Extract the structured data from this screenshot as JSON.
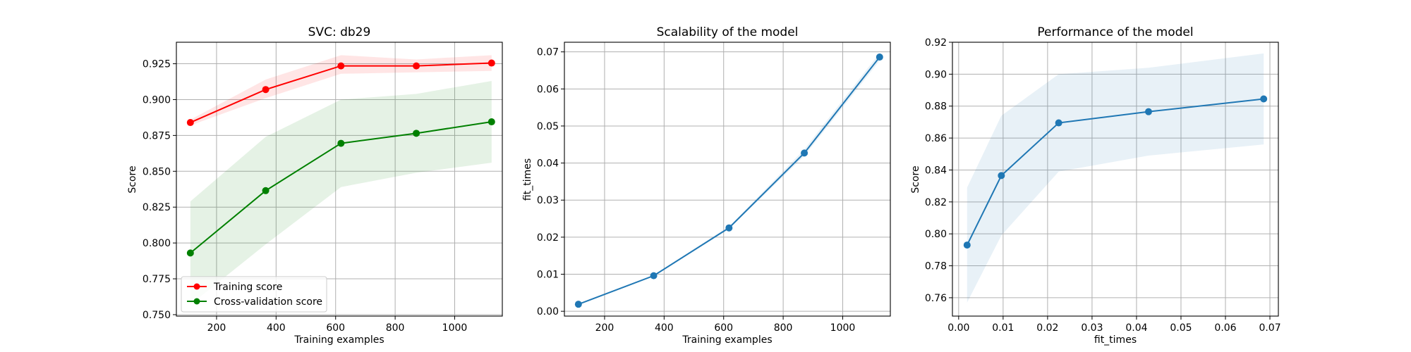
{
  "chart_data": [
    {
      "type": "line",
      "title": "SVC: db29",
      "xlabel": "Training examples",
      "ylabel": "Score",
      "xlim": [
        65,
        1160
      ],
      "ylim": [
        0.749,
        0.94
      ],
      "xticks": [
        200,
        400,
        600,
        800,
        1000
      ],
      "yticks": [
        0.75,
        0.775,
        0.8,
        0.825,
        0.85,
        0.875,
        0.9,
        0.925
      ],
      "ytick_format": 3,
      "grid": true,
      "legend": "lower-left",
      "x": [
        112,
        365,
        618,
        871,
        1124
      ],
      "series": [
        {
          "name": "Training score",
          "color": "#ff0000",
          "values": [
            0.884,
            0.907,
            0.9235,
            0.9235,
            0.9255
          ],
          "band_lower": [
            0.882,
            0.901,
            0.918,
            0.919,
            0.92
          ],
          "band_upper": [
            0.886,
            0.914,
            0.931,
            0.928,
            0.931
          ]
        },
        {
          "name": "Cross-validation score",
          "color": "#008000",
          "values": [
            0.793,
            0.8365,
            0.8695,
            0.8765,
            0.8845
          ],
          "band_lower": [
            0.757,
            0.799,
            0.839,
            0.849,
            0.856
          ],
          "band_upper": [
            0.829,
            0.874,
            0.9,
            0.904,
            0.913
          ]
        }
      ]
    },
    {
      "type": "line",
      "title": "Scalability of the model",
      "xlabel": "Training examples",
      "ylabel": "fit_times",
      "xlim": [
        65,
        1160
      ],
      "ylim": [
        -0.0013,
        0.0726
      ],
      "xticks": [
        200,
        400,
        600,
        800,
        1000
      ],
      "yticks": [
        0.0,
        0.01,
        0.02,
        0.03,
        0.04,
        0.05,
        0.06,
        0.07
      ],
      "ytick_format": 2,
      "grid": true,
      "x": [
        112,
        365,
        618,
        871,
        1124
      ],
      "series": [
        {
          "color": "#1f77b4",
          "values": [
            0.0019,
            0.0096,
            0.0225,
            0.0427,
            0.0686
          ],
          "band_lower": [
            0.0018,
            0.0094,
            0.0222,
            0.0419,
            0.0676
          ],
          "band_upper": [
            0.002,
            0.0098,
            0.0229,
            0.0437,
            0.0697
          ]
        }
      ]
    },
    {
      "type": "line",
      "title": "Performance of the model",
      "xlabel": "fit_times",
      "ylabel": "Score",
      "xlim": [
        -0.0014,
        0.0719
      ],
      "ylim": [
        0.7485,
        0.92
      ],
      "xticks": [
        0.0,
        0.01,
        0.02,
        0.03,
        0.04,
        0.05,
        0.06,
        0.07
      ],
      "xtick_format": 2,
      "yticks": [
        0.76,
        0.78,
        0.8,
        0.82,
        0.84,
        0.86,
        0.88,
        0.9,
        0.92
      ],
      "ytick_format": 2,
      "grid": true,
      "x": [
        0.0019,
        0.0096,
        0.0225,
        0.0427,
        0.0686
      ],
      "series": [
        {
          "color": "#1f77b4",
          "values": [
            0.793,
            0.8365,
            0.8695,
            0.8765,
            0.8845
          ],
          "band_lower": [
            0.757,
            0.799,
            0.839,
            0.849,
            0.856
          ],
          "band_upper": [
            0.829,
            0.874,
            0.9,
            0.904,
            0.913
          ]
        }
      ]
    }
  ]
}
